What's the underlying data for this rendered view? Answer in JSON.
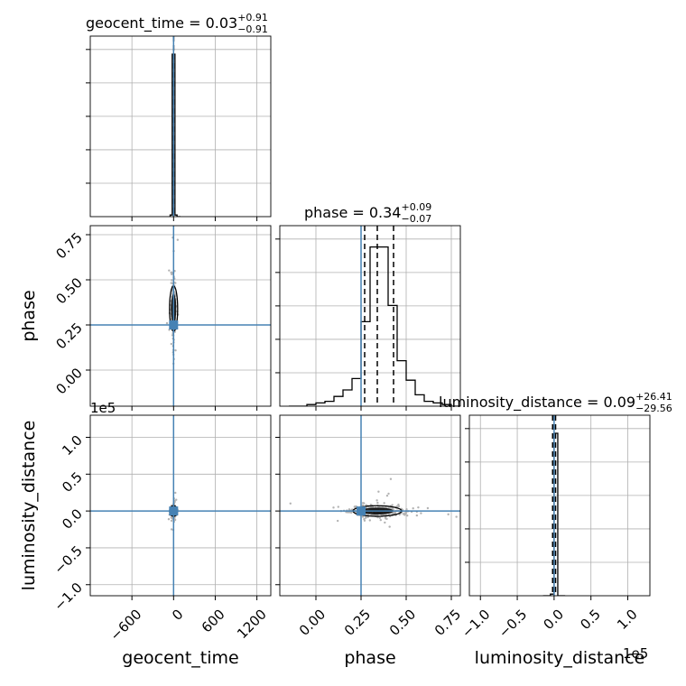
{
  "chart_data": {
    "type": "corner",
    "parameters": [
      "geocent_time",
      "phase",
      "luminosity_distance"
    ],
    "injection": {
      "geocent_time": 0,
      "phase": 0.25,
      "luminosity_distance": 0
    },
    "colors": {
      "hist": "#000000",
      "truth": "#4682b4",
      "grid": "#b0b0b0",
      "scatter": "#b3b3b3"
    },
    "grid": true,
    "titles": [
      {
        "base": "geocent_time = 0.03",
        "sup": "+0.91",
        "sub": "−0.91"
      },
      {
        "base": "phase = 0.34",
        "sup": "+0.09",
        "sub": "−0.07"
      },
      {
        "base": "luminosity_distance = 0.09",
        "sup": "+26.41",
        "sub": "−29.56"
      }
    ],
    "axis_labels": {
      "geocent_time": "geocent_time",
      "phase": "phase",
      "luminosity_distance": "luminosity_distance"
    },
    "offset_labels": {
      "luminosity_distance_y": "1e5",
      "luminosity_distance_x": "1e5"
    },
    "ranges": {
      "geocent_time": [
        -1200,
        1400
      ],
      "phase": [
        -0.2,
        0.8
      ],
      "luminosity_distance": [
        -1.15,
        1.3
      ]
    },
    "ticks": {
      "geocent_time": {
        "values": [
          -600,
          0,
          600,
          1200
        ],
        "labels": [
          "−600",
          "0",
          "600",
          "1200"
        ]
      },
      "phase": {
        "values": [
          0.0,
          0.25,
          0.5,
          0.75
        ],
        "labels": [
          "0.00",
          "0.25",
          "0.50",
          "0.75"
        ]
      },
      "luminosity_distance_y": {
        "values": [
          -1.0,
          -0.5,
          0.0,
          0.5,
          1.0
        ],
        "labels": [
          "−1.0",
          "−0.5",
          "0.0",
          "0.5",
          "1.0"
        ]
      },
      "luminosity_distance_x": {
        "values": [
          -1.0,
          -0.5,
          0.0,
          0.5,
          1.0
        ],
        "labels": [
          "−1.0",
          "−0.5",
          "0.0",
          "0.5",
          "1.0"
        ]
      }
    },
    "histograms": {
      "geocent_time": {
        "edges": [
          -50,
          -20,
          20,
          50,
          100
        ],
        "counts": [
          0.01,
          1.0,
          0.01,
          0.0
        ],
        "quantile_lines": [
          -0.88,
          0.03,
          0.94
        ]
      },
      "phase": {
        "edges": [
          -0.15,
          -0.1,
          -0.05,
          0.0,
          0.05,
          0.1,
          0.15,
          0.2,
          0.25,
          0.3,
          0.35,
          0.4,
          0.45,
          0.5,
          0.55,
          0.6,
          0.65,
          0.7,
          0.75,
          0.8
        ],
        "counts": [
          0.0,
          0.0,
          0.01,
          0.02,
          0.03,
          0.06,
          0.1,
          0.17,
          0.52,
          0.98,
          0.98,
          0.62,
          0.28,
          0.16,
          0.07,
          0.03,
          0.02,
          0.01,
          0.0
        ],
        "quantile_lines": [
          0.27,
          0.34,
          0.43
        ]
      },
      "luminosity_distance": {
        "edges": [
          -0.15,
          -0.1,
          -0.05,
          0.0,
          0.05,
          0.1,
          0.15
        ],
        "counts": [
          0.0,
          0.0,
          0.01,
          1.0,
          0.0,
          0.0
        ],
        "quantile_lines": [
          -0.02,
          0.0009,
          0.02
        ]
      }
    }
  }
}
